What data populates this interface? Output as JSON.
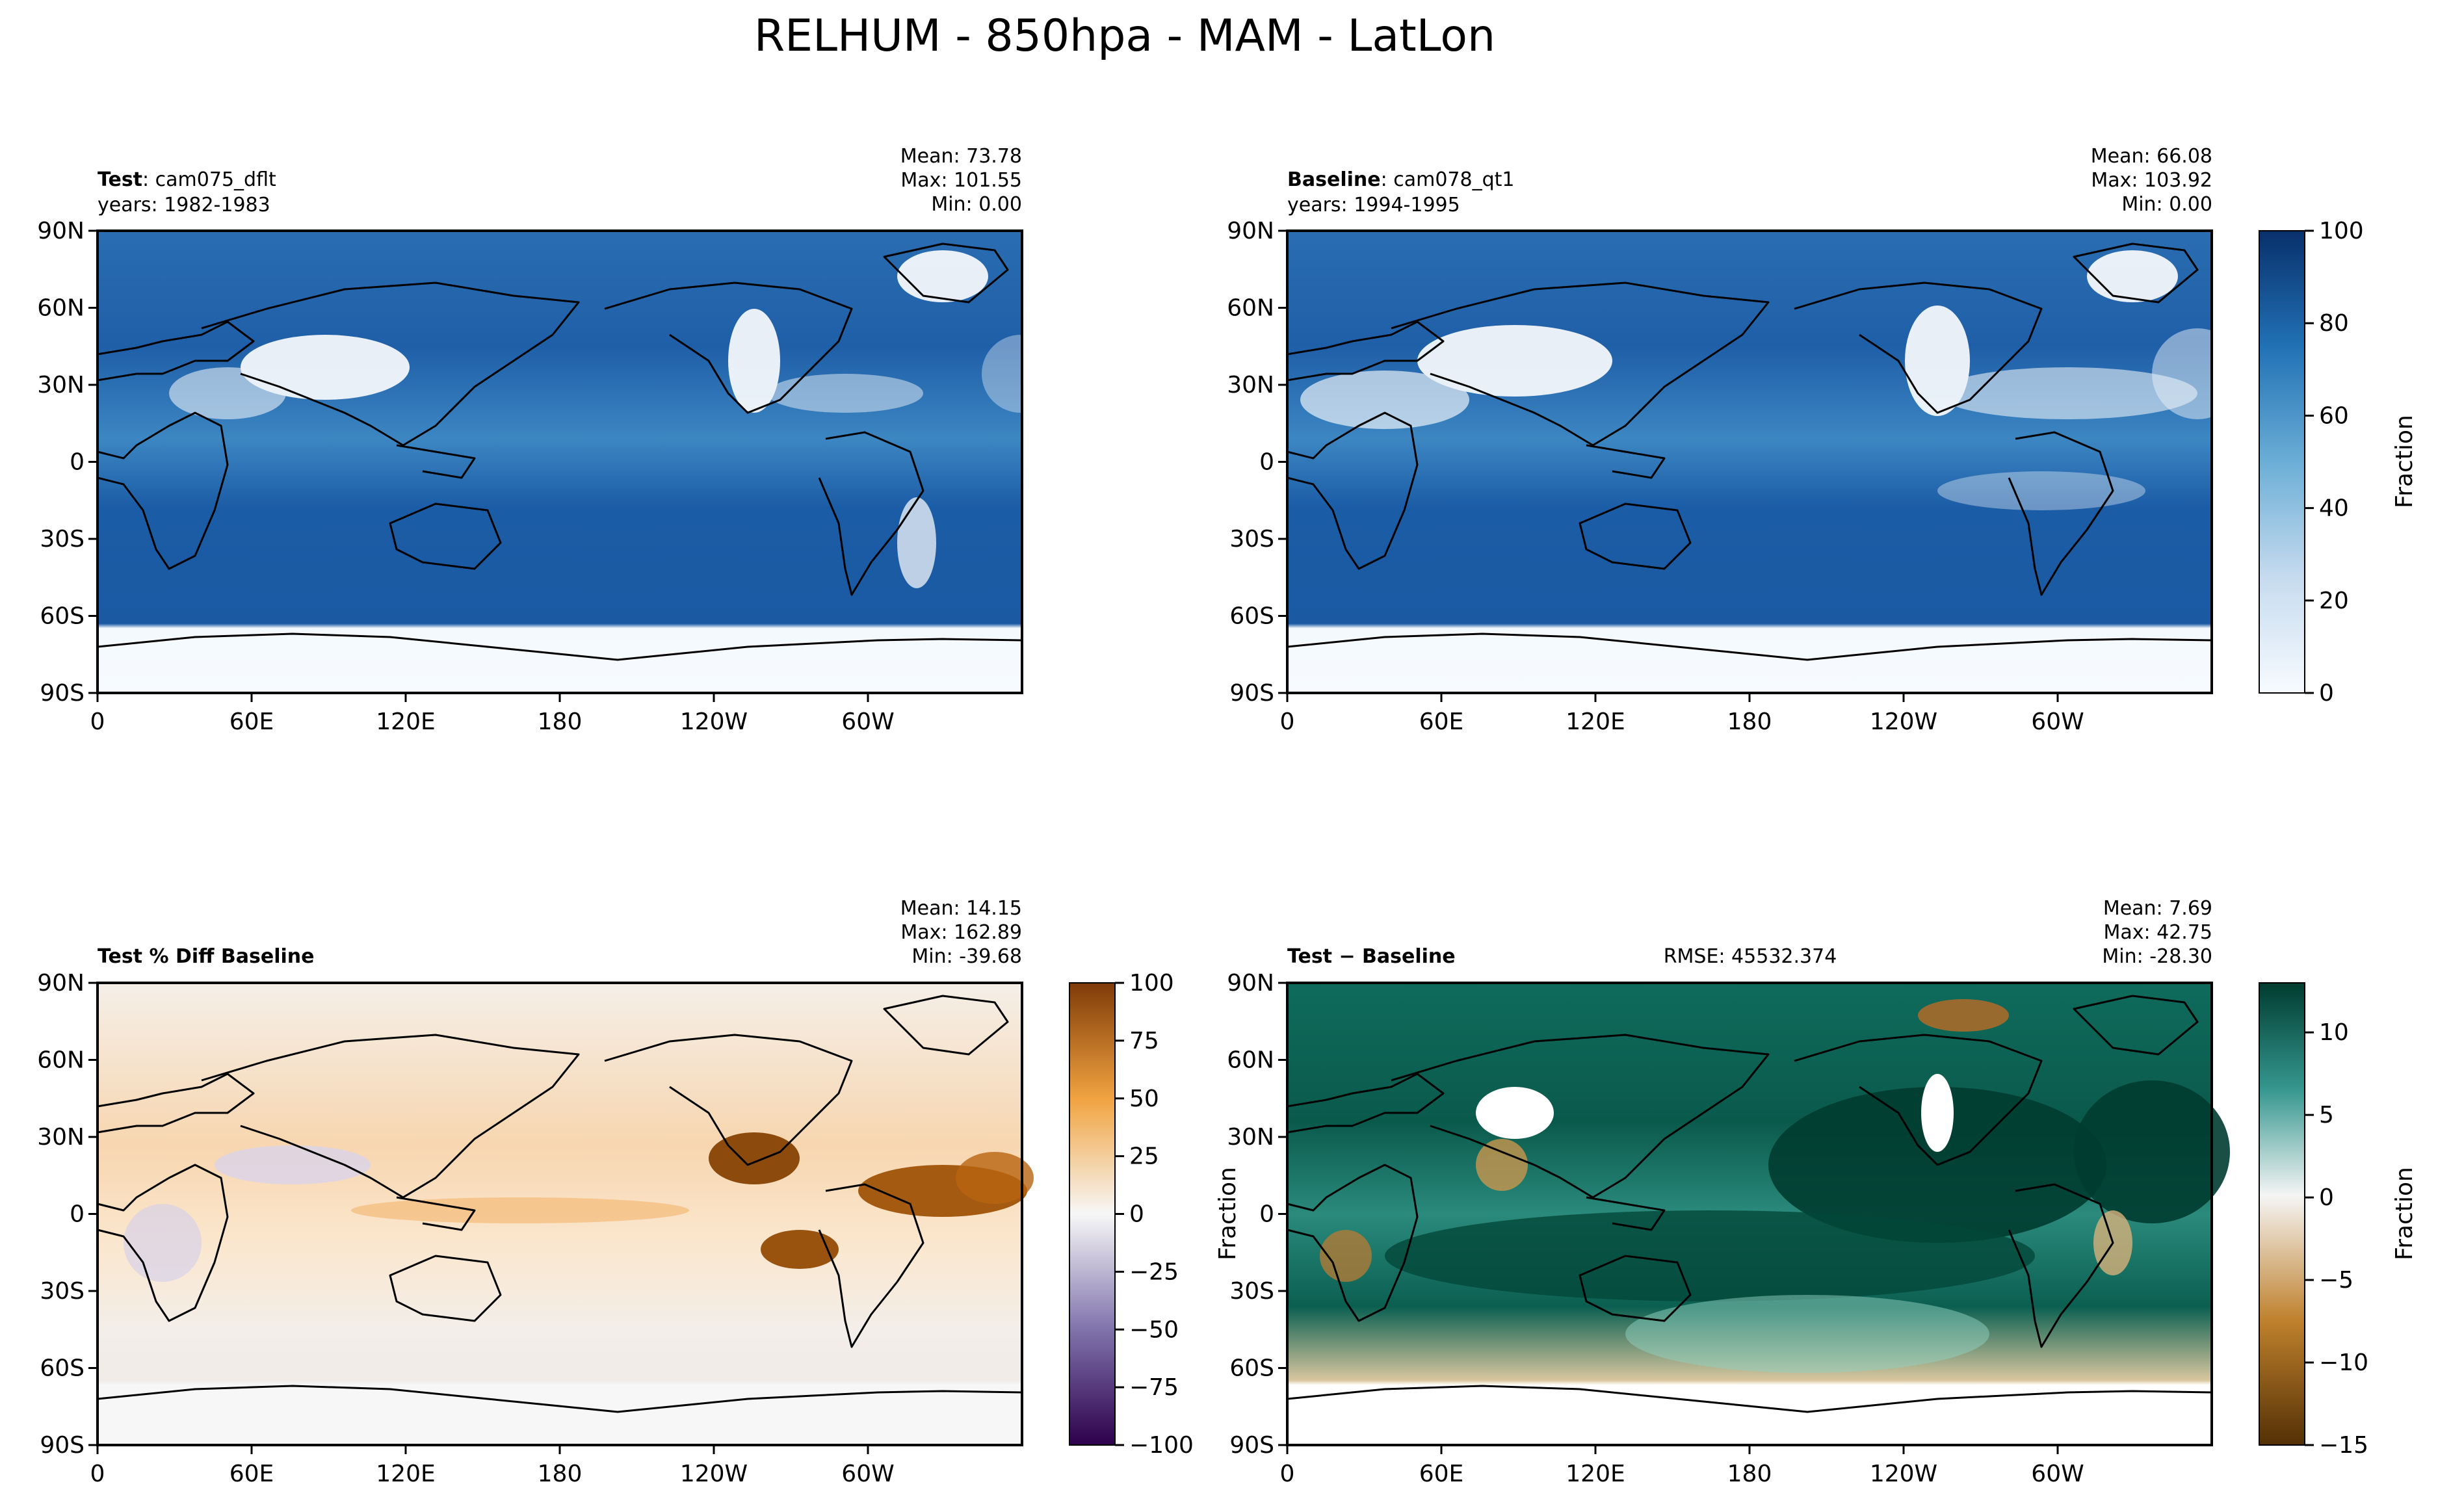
{
  "figure": {
    "title": "RELHUM - 850hpa - MAM - LatLon"
  },
  "colors": {
    "land_outline": "#000000",
    "blues_dark": "#08306b",
    "blues_mid": "#2f73b5",
    "blues_light": "#f7fbff",
    "puor_orange": "#7f3b08",
    "puor_purple": "#2d004b",
    "brbg_green": "#003c30",
    "brbg_brown": "#543005"
  },
  "chart_data": [
    {
      "type": "heatmap",
      "panel": "test",
      "label_bold": "Test",
      "label_rest": ": cam075_dflt",
      "years": "years: 1982-1983",
      "stats": {
        "mean": "Mean: 73.78",
        "max": "Max: 101.55",
        "min": "Min:  0.00"
      },
      "variable": "RELHUM",
      "colormap": "Blues",
      "clim": [
        0,
        100
      ],
      "xticks": [
        "0",
        "60E",
        "120E",
        "180",
        "120W",
        "60W"
      ],
      "yticks": [
        "90N",
        "60N",
        "30N",
        "0",
        "30S",
        "60S",
        "90S"
      ],
      "xlim": [
        0,
        360
      ],
      "ylim": [
        -90,
        90
      ]
    },
    {
      "type": "heatmap",
      "panel": "baseline",
      "label_bold": "Baseline",
      "label_rest": ": cam078_qt1",
      "years": "years: 1994-1995",
      "stats": {
        "mean": "Mean: 66.08",
        "max": "Max: 103.92",
        "min": "Min:  0.00"
      },
      "variable": "RELHUM",
      "colormap": "Blues",
      "clim": [
        0,
        100
      ],
      "xticks": [
        "0",
        "60E",
        "120E",
        "180",
        "120W",
        "60W"
      ],
      "yticks": [
        "90N",
        "60N",
        "30N",
        "0",
        "30S",
        "60S",
        "90S"
      ],
      "xlim": [
        0,
        360
      ],
      "ylim": [
        -90,
        90
      ],
      "colorbar": {
        "label": "Fraction",
        "ticks": [
          "0",
          "20",
          "40",
          "60",
          "80",
          "100"
        ],
        "range": [
          0,
          100
        ]
      }
    },
    {
      "type": "heatmap",
      "panel": "pct_diff",
      "label_bold": "Test % Diff Baseline",
      "stats": {
        "mean": "Mean: 14.15",
        "max": "Max: 162.89",
        "min": "Min: -39.68"
      },
      "colormap": "PuOr_r",
      "clim": [
        -100,
        100
      ],
      "xticks": [
        "0",
        "60E",
        "120E",
        "180",
        "120W",
        "60W"
      ],
      "yticks": [
        "90N",
        "60N",
        "30N",
        "0",
        "30S",
        "60S",
        "90S"
      ],
      "xlim": [
        0,
        360
      ],
      "ylim": [
        -90,
        90
      ],
      "colorbar": {
        "ticks": [
          "100",
          "75",
          "50",
          "25",
          "0",
          "−25",
          "−50",
          "−75",
          "−100"
        ],
        "range": [
          -100,
          100
        ]
      }
    },
    {
      "type": "heatmap",
      "panel": "diff",
      "label_bold": "Test − Baseline",
      "rmse": "RMSE: 45532.374",
      "stats": {
        "mean": "Mean:  7.69",
        "max": "Max: 42.75",
        "min": "Min: -28.30"
      },
      "colormap": "BrBG",
      "clim": [
        -15,
        13
      ],
      "xticks": [
        "0",
        "60E",
        "120E",
        "180",
        "120W",
        "60W"
      ],
      "yticks": [
        "90N",
        "60N",
        "30N",
        "0",
        "30S",
        "60S",
        "90S"
      ],
      "xlim": [
        0,
        360
      ],
      "ylim": [
        -90,
        90
      ],
      "ylabel": "Fraction",
      "colorbar": {
        "label": "Fraction",
        "ticks": [
          "10",
          "5",
          "0",
          "−5",
          "−10",
          "−15"
        ],
        "range": [
          -15,
          13
        ]
      }
    }
  ]
}
